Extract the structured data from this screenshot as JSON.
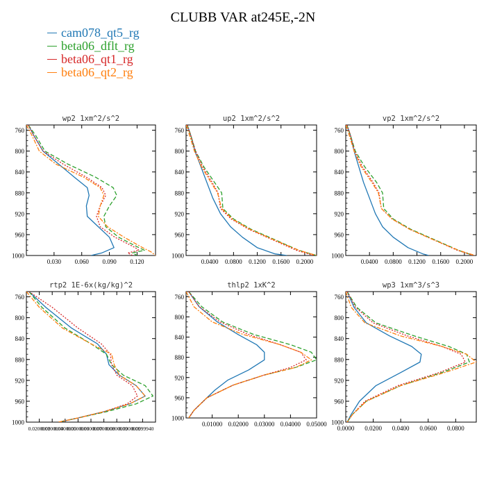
{
  "title": "CLUBB VAR at245E,-2N",
  "colors": {
    "cam078_qt5_rg": "#1f77b4",
    "beta06_dflt_rg": "#2ca02c",
    "beta06_qt1_rg": "#d62728",
    "beta06_qt2_rg": "#ff7f0e"
  },
  "legend": [
    {
      "name": "cam078_qt5_rg",
      "color": "#1f77b4",
      "dash": "solid"
    },
    {
      "name": "beta06_dflt_rg",
      "color": "#2ca02c",
      "dash": "dashed"
    },
    {
      "name": "beta06_qt1_rg",
      "color": "#d62728",
      "dash": "dotted"
    },
    {
      "name": "beta06_qt2_rg",
      "color": "#ff7f0e",
      "dash": "dashdot"
    }
  ],
  "chart_data": [
    {
      "type": "line",
      "title": "wp2  1xm^2/s^2",
      "xlim": [
        0.0,
        0.14
      ],
      "ylim": [
        1000,
        750
      ],
      "xticks": [
        0.03,
        0.06,
        0.09,
        0.12
      ],
      "xtick_labels": [
        "0.030",
        "0.060",
        "0.090",
        "0.120"
      ],
      "yticks": [
        760,
        800,
        840,
        880,
        920,
        960,
        1000
      ],
      "series": [
        {
          "name": "cam078_qt5_rg",
          "x": [
            0.002,
            0.008,
            0.018,
            0.035,
            0.052,
            0.066,
            0.068,
            0.065,
            0.066,
            0.078,
            0.09,
            0.095,
            0.082,
            0.07
          ],
          "y": [
            750,
            770,
            800,
            825,
            850,
            870,
            885,
            905,
            925,
            945,
            965,
            985,
            995,
            1000
          ]
        },
        {
          "name": "beta06_dflt_rg",
          "x": [
            0.002,
            0.01,
            0.02,
            0.045,
            0.075,
            0.094,
            0.098,
            0.09,
            0.084,
            0.086,
            0.1,
            0.122,
            0.128,
            0.115,
            0.12
          ],
          "y": [
            750,
            770,
            800,
            825,
            850,
            870,
            885,
            905,
            925,
            945,
            965,
            985,
            990,
            995,
            1000
          ]
        },
        {
          "name": "beta06_qt1_rg",
          "x": [
            0.002,
            0.008,
            0.018,
            0.04,
            0.065,
            0.082,
            0.086,
            0.08,
            0.076,
            0.08,
            0.096,
            0.118,
            0.122,
            0.11,
            0.115
          ],
          "y": [
            750,
            770,
            800,
            825,
            850,
            870,
            885,
            905,
            925,
            945,
            965,
            985,
            990,
            995,
            1000
          ]
        },
        {
          "name": "beta06_qt2_rg",
          "x": [
            0.0,
            0.006,
            0.014,
            0.032,
            0.062,
            0.08,
            0.084,
            0.08,
            0.078,
            0.088,
            0.106,
            0.126,
            0.135,
            0.14
          ],
          "y": [
            750,
            770,
            800,
            825,
            850,
            870,
            885,
            905,
            925,
            945,
            965,
            985,
            993,
            1000
          ]
        }
      ]
    },
    {
      "type": "line",
      "title": "up2  1xm^2/s^2",
      "xlim": [
        0.0,
        0.22
      ],
      "ylim": [
        1000,
        750
      ],
      "xticks": [
        0.04,
        0.08,
        0.12,
        0.16,
        0.2
      ],
      "xtick_labels": [
        "0.0400",
        "0.0800",
        "0.1200",
        "0.1600",
        "0.2000"
      ],
      "yticks": [
        760,
        800,
        840,
        880,
        920,
        960,
        1000
      ],
      "series": [
        {
          "name": "cam078_qt5_rg",
          "x": [
            0.002,
            0.008,
            0.015,
            0.025,
            0.035,
            0.045,
            0.058,
            0.075,
            0.095,
            0.12,
            0.15,
            0.17
          ],
          "y": [
            750,
            770,
            800,
            830,
            860,
            890,
            920,
            945,
            965,
            985,
            997,
            1000
          ]
        },
        {
          "name": "beta06_dflt_rg",
          "x": [
            0.002,
            0.008,
            0.016,
            0.03,
            0.048,
            0.06,
            0.062,
            0.08,
            0.11,
            0.15,
            0.19,
            0.22
          ],
          "y": [
            750,
            770,
            800,
            830,
            860,
            880,
            910,
            930,
            950,
            970,
            990,
            1000
          ]
        },
        {
          "name": "beta06_qt1_rg",
          "x": [
            0.002,
            0.008,
            0.016,
            0.028,
            0.044,
            0.054,
            0.058,
            0.076,
            0.106,
            0.146,
            0.186,
            0.215
          ],
          "y": [
            750,
            770,
            800,
            830,
            860,
            880,
            910,
            930,
            950,
            970,
            990,
            1000
          ]
        },
        {
          "name": "beta06_qt2_rg",
          "x": [
            0.0,
            0.006,
            0.014,
            0.026,
            0.042,
            0.053,
            0.06,
            0.078,
            0.108,
            0.148,
            0.19,
            0.22
          ],
          "y": [
            750,
            770,
            800,
            830,
            860,
            880,
            910,
            930,
            950,
            970,
            990,
            1000
          ]
        }
      ]
    },
    {
      "type": "line",
      "title": "vp2  1xm^2/s^2",
      "xlim": [
        0.0,
        0.22
      ],
      "ylim": [
        1000,
        750
      ],
      "xticks": [
        0.04,
        0.08,
        0.12,
        0.16,
        0.2
      ],
      "xtick_labels": [
        "0.0400",
        "0.0800",
        "0.1200",
        "0.1600",
        "0.2000"
      ],
      "yticks": [
        760,
        800,
        840,
        880,
        920,
        960,
        1000
      ],
      "series": [
        {
          "name": "cam078_qt5_rg",
          "x": [
            0.002,
            0.008,
            0.014,
            0.022,
            0.03,
            0.04,
            0.05,
            0.062,
            0.08,
            0.105,
            0.13,
            0.14
          ],
          "y": [
            750,
            770,
            800,
            830,
            860,
            890,
            920,
            945,
            965,
            985,
            997,
            1000
          ]
        },
        {
          "name": "beta06_dflt_rg",
          "x": [
            0.002,
            0.008,
            0.016,
            0.032,
            0.052,
            0.062,
            0.064,
            0.08,
            0.11,
            0.15,
            0.19,
            0.215
          ],
          "y": [
            750,
            770,
            800,
            830,
            860,
            880,
            910,
            930,
            950,
            970,
            990,
            1000
          ]
        },
        {
          "name": "beta06_qt1_rg",
          "x": [
            0.002,
            0.008,
            0.015,
            0.028,
            0.046,
            0.056,
            0.06,
            0.078,
            0.108,
            0.148,
            0.188,
            0.215
          ],
          "y": [
            750,
            770,
            800,
            830,
            860,
            880,
            910,
            930,
            950,
            970,
            990,
            1000
          ]
        },
        {
          "name": "beta06_qt2_rg",
          "x": [
            0.0,
            0.006,
            0.014,
            0.026,
            0.044,
            0.055,
            0.06,
            0.078,
            0.108,
            0.148,
            0.19,
            0.218
          ],
          "y": [
            750,
            770,
            800,
            830,
            860,
            880,
            910,
            930,
            950,
            970,
            990,
            1000
          ]
        }
      ]
    },
    {
      "type": "line",
      "title": "rtp2  1E-6x(kg/kg)^2",
      "xlim": [
        0.0,
        1.0
      ],
      "ylim": [
        1000,
        750
      ],
      "xticks": [
        0.1,
        0.2,
        0.3,
        0.4,
        0.5,
        0.6,
        0.7,
        0.8,
        0.9
      ],
      "xtick_labels": [
        "0.0200000",
        "0.0300000",
        "0.0400000",
        "0.0500000",
        "0.0600000",
        "0.0700000",
        "0.0800000",
        "0.0900000",
        "0.0999940"
      ],
      "yticks": [
        760,
        800,
        840,
        880,
        920,
        960,
        1000
      ],
      "series": [
        {
          "name": "cam078_qt5_rg",
          "x": [
            0.02,
            0.15,
            0.35,
            0.55,
            0.62,
            0.64,
            0.72,
            0.85,
            0.92,
            0.8,
            0.6,
            0.4,
            0.25
          ],
          "y": [
            750,
            780,
            820,
            850,
            870,
            890,
            910,
            930,
            950,
            965,
            980,
            992,
            1000
          ]
        },
        {
          "name": "beta06_dflt_rg",
          "x": [
            0.02,
            0.12,
            0.3,
            0.5,
            0.62,
            0.66,
            0.75,
            0.92,
            0.98,
            0.85,
            0.62,
            0.4,
            0.25
          ],
          "y": [
            750,
            780,
            820,
            850,
            870,
            890,
            910,
            930,
            950,
            965,
            980,
            992,
            1000
          ]
        },
        {
          "name": "beta06_qt1_rg",
          "x": [
            0.02,
            0.2,
            0.4,
            0.58,
            0.65,
            0.66,
            0.7,
            0.82,
            0.86,
            0.78,
            0.6,
            0.4,
            0.25
          ],
          "y": [
            750,
            780,
            820,
            850,
            870,
            890,
            910,
            930,
            950,
            965,
            980,
            992,
            1000
          ]
        },
        {
          "name": "beta06_qt2_rg",
          "x": [
            0.0,
            0.1,
            0.28,
            0.5,
            0.66,
            0.68,
            0.72,
            0.85,
            0.92,
            0.8,
            0.6,
            0.4,
            0.25
          ],
          "y": [
            750,
            780,
            820,
            850,
            870,
            890,
            910,
            930,
            950,
            965,
            980,
            992,
            1000
          ]
        }
      ]
    },
    {
      "type": "line",
      "title": "thlp2  1xK^2",
      "xlim": [
        0.0,
        0.05
      ],
      "ylim": [
        1000,
        750
      ],
      "xticks": [
        0.01,
        0.02,
        0.03,
        0.04,
        0.05
      ],
      "xtick_labels": [
        "0.01000",
        "0.02000",
        "0.03000",
        "0.04000",
        "0.05000"
      ],
      "yticks": [
        760,
        800,
        840,
        880,
        920,
        960,
        1000
      ],
      "series": [
        {
          "name": "cam078_qt5_rg",
          "x": [
            0.001,
            0.005,
            0.012,
            0.02,
            0.027,
            0.03,
            0.03,
            0.024,
            0.016,
            0.011,
            0.007,
            0.003,
            0.001
          ],
          "y": [
            750,
            780,
            810,
            835,
            855,
            870,
            885,
            905,
            925,
            945,
            965,
            985,
            1000
          ]
        },
        {
          "name": "beta06_dflt_rg",
          "x": [
            0.001,
            0.006,
            0.014,
            0.026,
            0.04,
            0.048,
            0.05,
            0.042,
            0.03,
            0.018,
            0.008,
            0.003,
            0.001
          ],
          "y": [
            750,
            780,
            810,
            835,
            855,
            870,
            885,
            900,
            915,
            935,
            960,
            985,
            1000
          ]
        },
        {
          "name": "beta06_qt1_rg",
          "x": [
            0.001,
            0.005,
            0.013,
            0.024,
            0.036,
            0.044,
            0.046,
            0.04,
            0.03,
            0.018,
            0.008,
            0.003,
            0.001
          ],
          "y": [
            750,
            780,
            810,
            835,
            855,
            870,
            885,
            900,
            915,
            935,
            960,
            985,
            1000
          ]
        },
        {
          "name": "beta06_qt2_rg",
          "x": [
            0.0,
            0.003,
            0.01,
            0.022,
            0.036,
            0.044,
            0.048,
            0.042,
            0.03,
            0.018,
            0.008,
            0.003,
            0.001
          ],
          "y": [
            750,
            780,
            810,
            835,
            855,
            870,
            885,
            900,
            915,
            935,
            960,
            985,
            1000
          ]
        }
      ]
    },
    {
      "type": "line",
      "title": "wp3  1xm^3/s^3",
      "xlim": [
        0.0,
        0.095
      ],
      "ylim": [
        1000,
        750
      ],
      "xticks": [
        0.0,
        0.02,
        0.04,
        0.06,
        0.08
      ],
      "xtick_labels": [
        "0.0000",
        "0.0200",
        "0.0400",
        "0.0600",
        "0.0800"
      ],
      "yticks": [
        760,
        800,
        840,
        880,
        920,
        960,
        1000
      ],
      "series": [
        {
          "name": "cam078_qt5_rg",
          "x": [
            0.001,
            0.006,
            0.015,
            0.032,
            0.048,
            0.055,
            0.054,
            0.04,
            0.022,
            0.01,
            0.004,
            0.001
          ],
          "y": [
            750,
            780,
            810,
            835,
            855,
            870,
            885,
            905,
            930,
            960,
            985,
            1000
          ]
        },
        {
          "name": "beta06_dflt_rg",
          "x": [
            0.001,
            0.008,
            0.022,
            0.05,
            0.075,
            0.088,
            0.09,
            0.07,
            0.04,
            0.015,
            0.005,
            0.001
          ],
          "y": [
            750,
            780,
            810,
            835,
            855,
            870,
            885,
            905,
            930,
            960,
            985,
            1000
          ]
        },
        {
          "name": "beta06_qt1_rg",
          "x": [
            0.001,
            0.007,
            0.02,
            0.045,
            0.07,
            0.084,
            0.087,
            0.068,
            0.038,
            0.014,
            0.005,
            0.001
          ],
          "y": [
            750,
            780,
            810,
            835,
            855,
            870,
            885,
            905,
            930,
            960,
            985,
            1000
          ]
        },
        {
          "name": "beta06_qt2_rg",
          "x": [
            0.0,
            0.004,
            0.014,
            0.04,
            0.07,
            0.088,
            0.095,
            0.072,
            0.04,
            0.015,
            0.005,
            0.001
          ],
          "y": [
            750,
            780,
            810,
            835,
            855,
            870,
            885,
            905,
            930,
            960,
            985,
            1000
          ]
        }
      ]
    }
  ]
}
